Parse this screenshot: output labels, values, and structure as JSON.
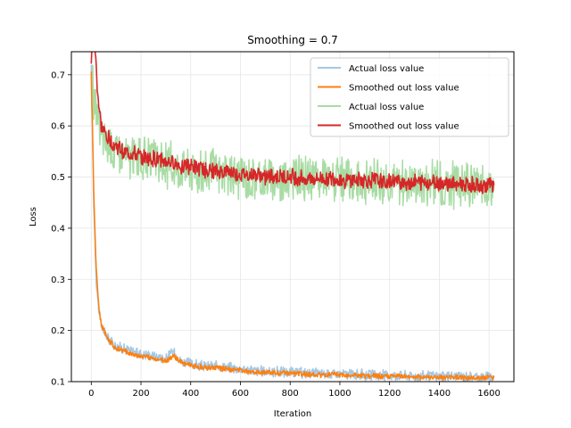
{
  "chart_data": {
    "type": "line",
    "title": "Smoothing = 0.7",
    "xlabel": "Iteration",
    "ylabel": "Loss",
    "xlim": [
      -80,
      1700
    ],
    "ylim": [
      0.1,
      0.745
    ],
    "xticks": [
      0,
      200,
      400,
      600,
      800,
      1000,
      1200,
      1400,
      1600
    ],
    "yticks": [
      0.1,
      0.2,
      0.3,
      0.4,
      0.5,
      0.6,
      0.7
    ],
    "grid": true,
    "legend_position": "top-right",
    "series": [
      {
        "name": "Actual loss value",
        "color": "#a6c8e2",
        "x": [
          0,
          10,
          20,
          30,
          40,
          60,
          80,
          100,
          130,
          160,
          200,
          250,
          300,
          330,
          360,
          400,
          450,
          500,
          550,
          600,
          650,
          700,
          750,
          800,
          850,
          900,
          950,
          1000,
          1050,
          1100,
          1150,
          1200,
          1250,
          1300,
          1350,
          1400,
          1450,
          1500,
          1550,
          1600,
          1620
        ],
        "y": [
          0.71,
          0.45,
          0.3,
          0.24,
          0.21,
          0.19,
          0.18,
          0.17,
          0.165,
          0.16,
          0.155,
          0.15,
          0.145,
          0.16,
          0.14,
          0.135,
          0.13,
          0.13,
          0.128,
          0.125,
          0.122,
          0.12,
          0.12,
          0.118,
          0.117,
          0.116,
          0.115,
          0.115,
          0.114,
          0.113,
          0.113,
          0.112,
          0.112,
          0.111,
          0.111,
          0.11,
          0.11,
          0.11,
          0.109,
          0.11,
          0.11
        ]
      },
      {
        "name": "Smoothed out loss value",
        "color": "#ff7f0e",
        "x": [
          0,
          10,
          20,
          30,
          40,
          60,
          80,
          100,
          130,
          160,
          200,
          250,
          300,
          330,
          360,
          400,
          450,
          500,
          550,
          600,
          650,
          700,
          750,
          800,
          850,
          900,
          950,
          1000,
          1050,
          1100,
          1150,
          1200,
          1250,
          1300,
          1350,
          1400,
          1450,
          1500,
          1550,
          1600,
          1620
        ],
        "y": [
          0.71,
          0.47,
          0.32,
          0.25,
          0.21,
          0.19,
          0.175,
          0.165,
          0.16,
          0.155,
          0.15,
          0.145,
          0.14,
          0.15,
          0.138,
          0.132,
          0.128,
          0.127,
          0.125,
          0.122,
          0.12,
          0.118,
          0.117,
          0.116,
          0.115,
          0.114,
          0.113,
          0.113,
          0.112,
          0.111,
          0.111,
          0.11,
          0.11,
          0.109,
          0.109,
          0.108,
          0.108,
          0.108,
          0.107,
          0.108,
          0.108
        ]
      },
      {
        "name": "Actual loss value",
        "color": "#a8dca4",
        "x": [
          0,
          10,
          20,
          30,
          40,
          60,
          80,
          100,
          130,
          160,
          200,
          250,
          300,
          350,
          400,
          450,
          500,
          550,
          600,
          650,
          700,
          750,
          800,
          850,
          900,
          950,
          1000,
          1050,
          1100,
          1150,
          1200,
          1250,
          1300,
          1350,
          1400,
          1450,
          1500,
          1550,
          1600,
          1620
        ],
        "y": [
          0.71,
          0.66,
          0.63,
          0.6,
          0.58,
          0.57,
          0.56,
          0.55,
          0.545,
          0.54,
          0.535,
          0.53,
          0.525,
          0.52,
          0.515,
          0.51,
          0.51,
          0.505,
          0.505,
          0.5,
          0.5,
          0.5,
          0.498,
          0.497,
          0.496,
          0.495,
          0.494,
          0.493,
          0.492,
          0.491,
          0.49,
          0.49,
          0.489,
          0.488,
          0.487,
          0.486,
          0.485,
          0.484,
          0.483,
          0.483
        ]
      },
      {
        "name": "Smoothed out loss value",
        "color": "#d62728",
        "x": [
          0,
          10,
          20,
          30,
          40,
          60,
          80,
          100,
          130,
          160,
          200,
          250,
          300,
          350,
          400,
          450,
          500,
          550,
          600,
          650,
          700,
          750,
          800,
          850,
          900,
          950,
          1000,
          1050,
          1100,
          1150,
          1200,
          1250,
          1300,
          1350,
          1400,
          1450,
          1500,
          1550,
          1600,
          1620
        ],
        "y": [
          0.72,
          0.8,
          0.71,
          0.64,
          0.6,
          0.58,
          0.57,
          0.56,
          0.55,
          0.545,
          0.54,
          0.535,
          0.53,
          0.525,
          0.52,
          0.515,
          0.51,
          0.51,
          0.505,
          0.505,
          0.5,
          0.5,
          0.5,
          0.498,
          0.497,
          0.496,
          0.495,
          0.494,
          0.493,
          0.492,
          0.491,
          0.49,
          0.49,
          0.489,
          0.488,
          0.487,
          0.486,
          0.485,
          0.484,
          0.484
        ]
      }
    ]
  }
}
